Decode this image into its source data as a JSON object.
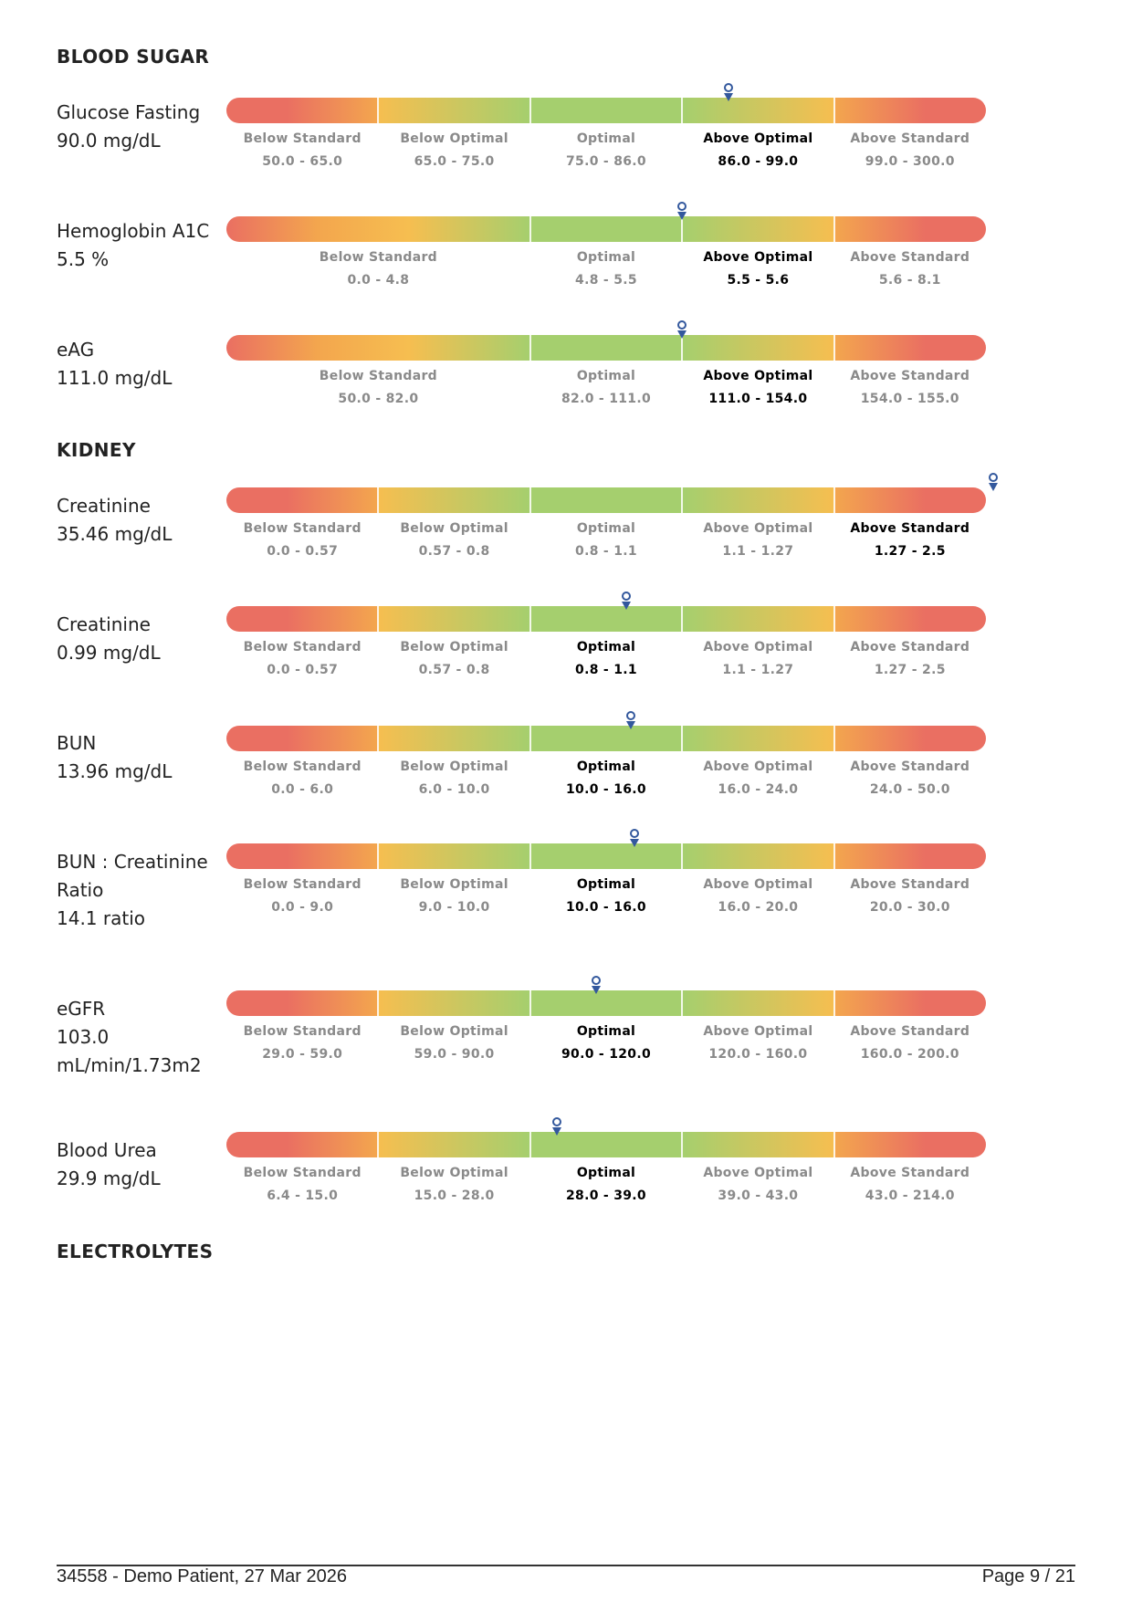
{
  "sections": {
    "blood_sugar": "BLOOD SUGAR",
    "kidney": "KIDNEY",
    "electrolytes": "ELECTROLYTES"
  },
  "colors": {
    "red": "#ea6f62",
    "orange": "#f3a64e",
    "yellow": "#f6be50",
    "green": "#a5cf6e",
    "marker": "#33589d"
  },
  "tests": [
    {
      "name": "Glucose Fasting",
      "value": "90.0 mg/dL",
      "value_num": 90.0,
      "active": 3,
      "segments": [
        {
          "label": "Below Standard",
          "range": "50.0 - 65.0"
        },
        {
          "label": "Below Optimal",
          "range": "65.0 - 75.0"
        },
        {
          "label": "Optimal",
          "range": "75.0 - 86.0"
        },
        {
          "label": "Above Optimal",
          "range": "86.0 - 99.0"
        },
        {
          "label": "Above Standard",
          "range": "99.0 - 300.0"
        }
      ]
    },
    {
      "name": "Hemoglobin A1C",
      "value": "5.5 %",
      "value_num": 5.5,
      "active": 2,
      "segments": [
        {
          "label": "Below Standard",
          "range": "0.0 - 4.8"
        },
        {
          "label": "Optimal",
          "range": "4.8 - 5.5"
        },
        {
          "label": "Above Optimal",
          "range": "5.5 - 5.6"
        },
        {
          "label": "Above Standard",
          "range": "5.6 - 8.1"
        }
      ]
    },
    {
      "name": "eAG",
      "value": "111.0 mg/dL",
      "value_num": 111.0,
      "active": 2,
      "segments": [
        {
          "label": "Below Standard",
          "range": "50.0 - 82.0"
        },
        {
          "label": "Optimal",
          "range": "82.0 - 111.0"
        },
        {
          "label": "Above Optimal",
          "range": "111.0 - 154.0"
        },
        {
          "label": "Above Standard",
          "range": "154.0 - 155.0"
        }
      ]
    },
    {
      "name": "Creatinine",
      "value": "35.46 mg/dL",
      "value_num": 35.46,
      "active": 4,
      "segments": [
        {
          "label": "Below Standard",
          "range": "0.0 - 0.57"
        },
        {
          "label": "Below Optimal",
          "range": "0.57 - 0.8"
        },
        {
          "label": "Optimal",
          "range": "0.8 - 1.1"
        },
        {
          "label": "Above Optimal",
          "range": "1.1 - 1.27"
        },
        {
          "label": "Above Standard",
          "range": "1.27 - 2.5"
        }
      ]
    },
    {
      "name": "Creatinine",
      "value": "0.99 mg/dL",
      "value_num": 0.99,
      "active": 2,
      "segments": [
        {
          "label": "Below Standard",
          "range": "0.0 - 0.57"
        },
        {
          "label": "Below Optimal",
          "range": "0.57 - 0.8"
        },
        {
          "label": "Optimal",
          "range": "0.8 - 1.1"
        },
        {
          "label": "Above Optimal",
          "range": "1.1 - 1.27"
        },
        {
          "label": "Above Standard",
          "range": "1.27 - 2.5"
        }
      ]
    },
    {
      "name": "BUN",
      "value": "13.96 mg/dL",
      "value_num": 13.96,
      "active": 2,
      "segments": [
        {
          "label": "Below Standard",
          "range": "0.0 - 6.0"
        },
        {
          "label": "Below Optimal",
          "range": "6.0 - 10.0"
        },
        {
          "label": "Optimal",
          "range": "10.0 - 16.0"
        },
        {
          "label": "Above Optimal",
          "range": "16.0 - 24.0"
        },
        {
          "label": "Above Standard",
          "range": "24.0 - 50.0"
        }
      ]
    },
    {
      "name": "BUN : Creatinine Ratio",
      "value": "14.1 ratio",
      "value_num": 14.1,
      "active": 2,
      "segments": [
        {
          "label": "Below Standard",
          "range": "0.0 - 9.0"
        },
        {
          "label": "Below Optimal",
          "range": "9.0 - 10.0"
        },
        {
          "label": "Optimal",
          "range": "10.0 - 16.0"
        },
        {
          "label": "Above Optimal",
          "range": "16.0 - 20.0"
        },
        {
          "label": "Above Standard",
          "range": "20.0 - 30.0"
        }
      ]
    },
    {
      "name": "eGFR",
      "value": "103.0 mL/min/1.73m2",
      "value_num": 103.0,
      "active": 2,
      "segments": [
        {
          "label": "Below Standard",
          "range": "29.0 - 59.0"
        },
        {
          "label": "Below Optimal",
          "range": "59.0 - 90.0"
        },
        {
          "label": "Optimal",
          "range": "90.0 - 120.0"
        },
        {
          "label": "Above Optimal",
          "range": "120.0 - 160.0"
        },
        {
          "label": "Above Standard",
          "range": "160.0 - 200.0"
        }
      ]
    },
    {
      "name": "Blood Urea",
      "value": "29.9 mg/dL",
      "value_num": 29.9,
      "active": 2,
      "segments": [
        {
          "label": "Below Standard",
          "range": "6.4 - 15.0"
        },
        {
          "label": "Below Optimal",
          "range": "15.0 - 28.0"
        },
        {
          "label": "Optimal",
          "range": "28.0 - 39.0"
        },
        {
          "label": "Above Optimal",
          "range": "39.0 - 43.0"
        },
        {
          "label": "Above Standard",
          "range": "43.0 - 214.0"
        }
      ]
    }
  ],
  "footer": {
    "left": "34558 - Demo Patient, 27 Mar 2026",
    "right": "Page 9 / 21"
  }
}
